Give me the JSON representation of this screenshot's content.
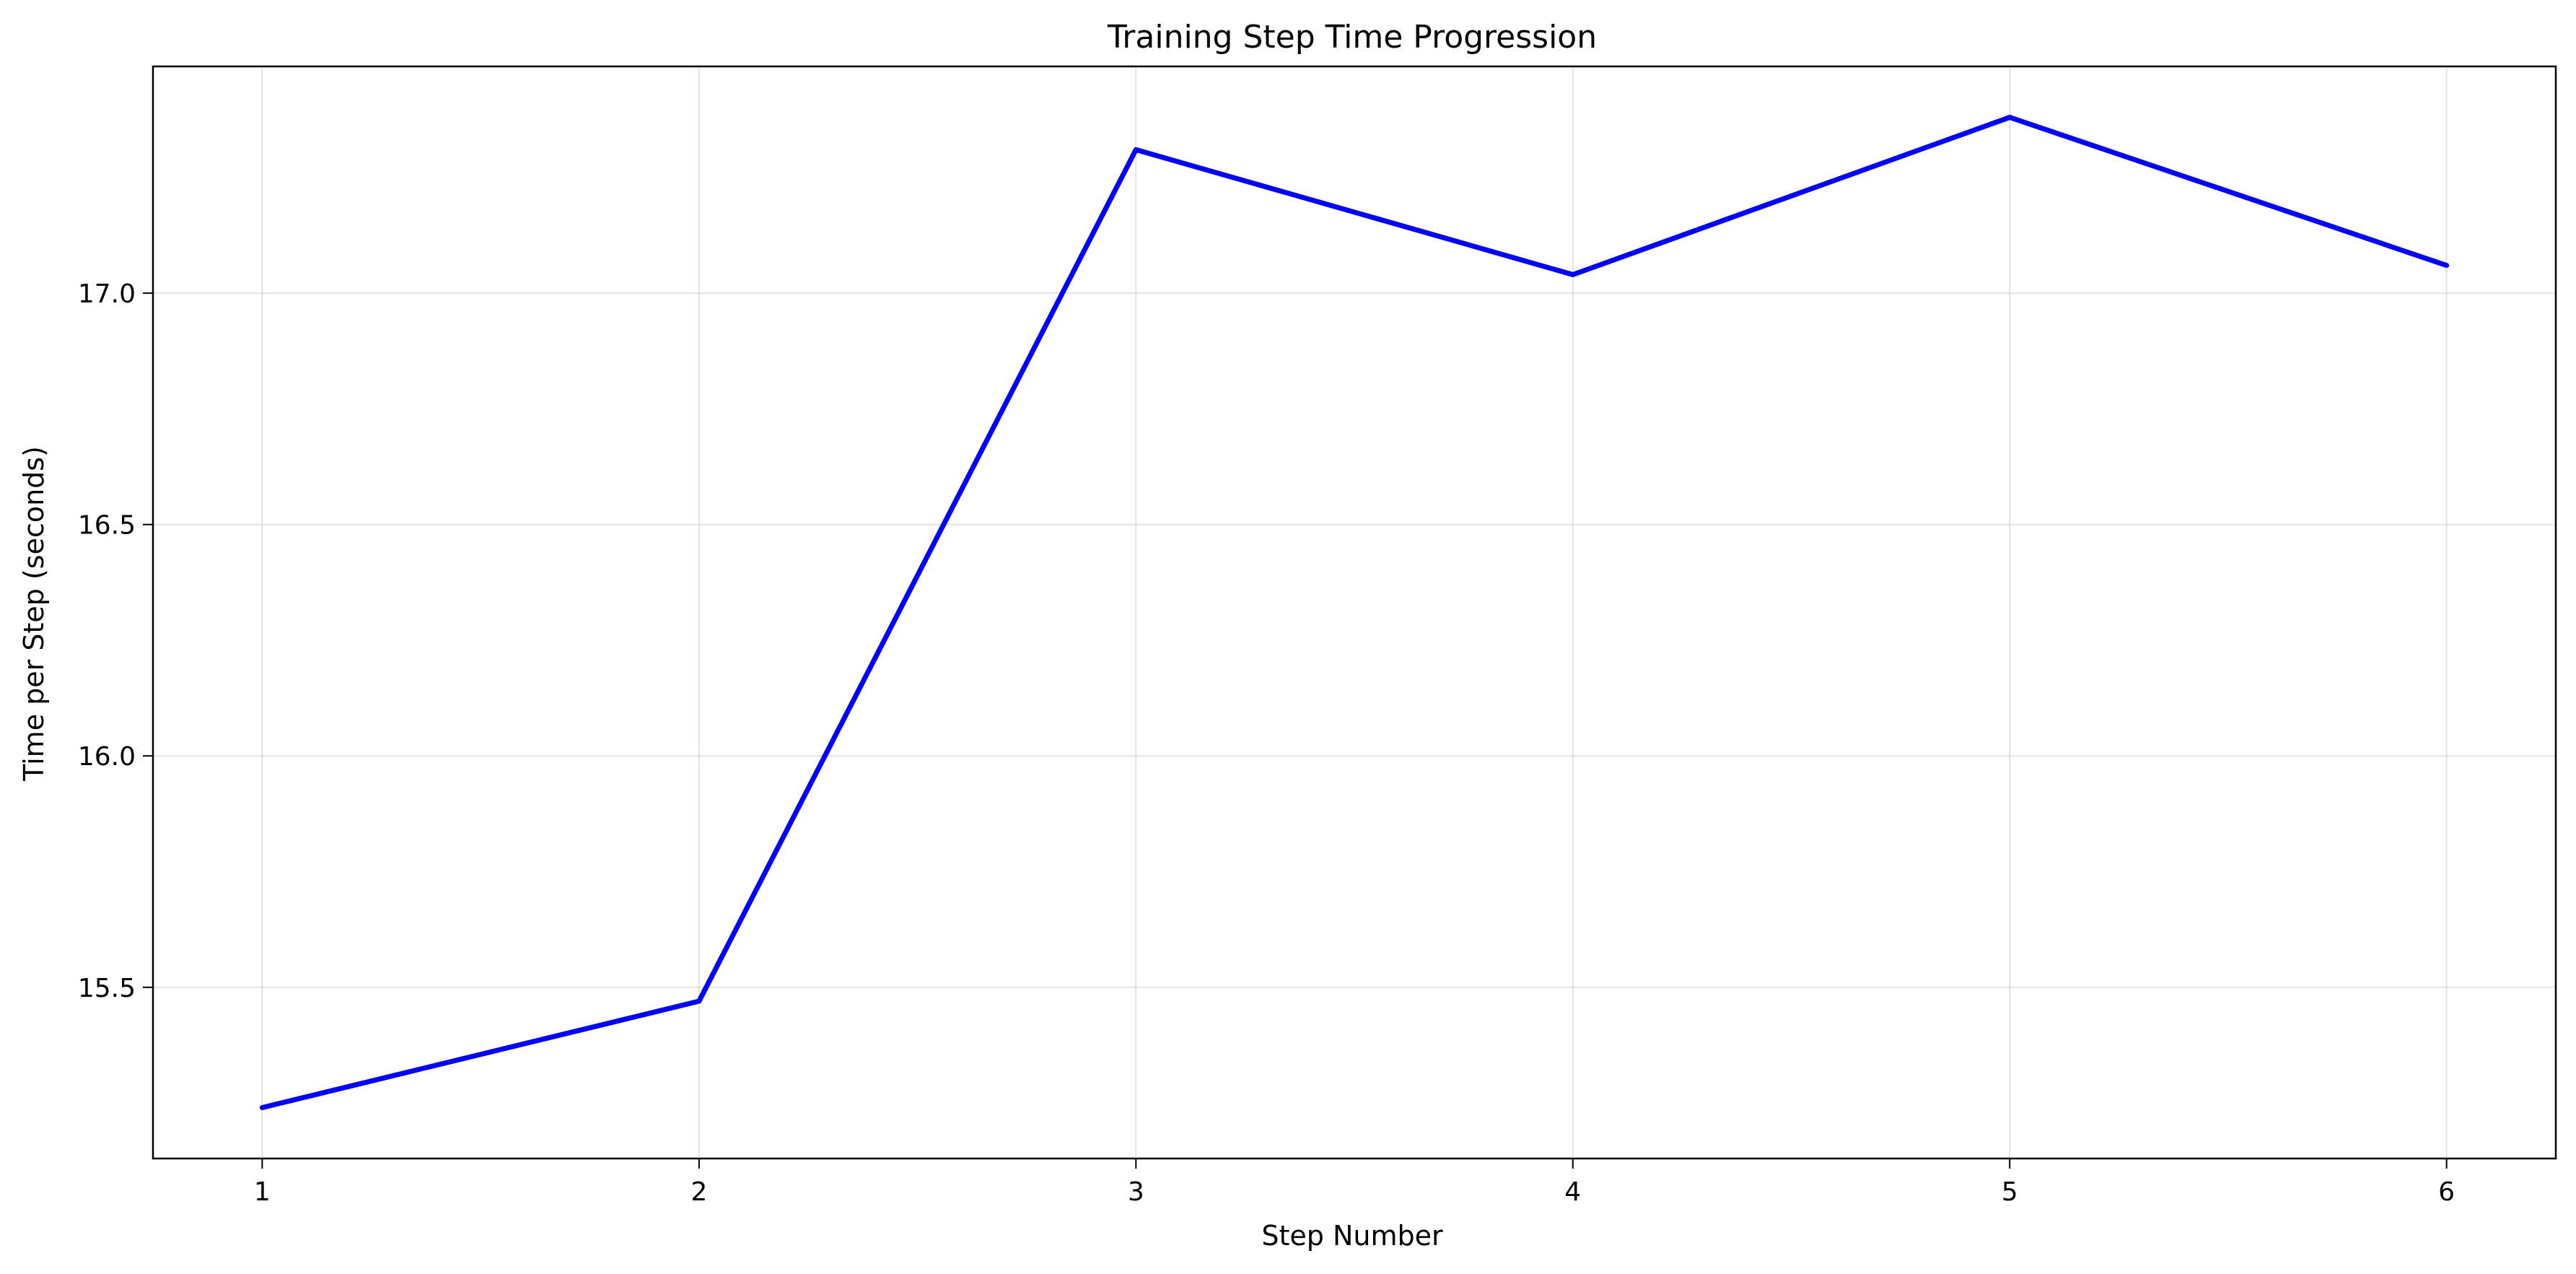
{
  "chart_data": {
    "type": "line",
    "title": "Training Step Time Progression",
    "xlabel": "Step Number",
    "ylabel": "Time per Step (seconds)",
    "x": [
      1,
      2,
      3,
      4,
      5,
      6
    ],
    "series": [
      {
        "values": [
          15.24,
          15.47,
          17.31,
          17.04,
          17.38,
          17.06
        ],
        "color": "#0000ff"
      }
    ],
    "xlim": [
      0.75,
      6.25
    ],
    "ylim": [
      15.13,
      17.49
    ],
    "xticks": [
      1,
      2,
      3,
      4,
      5,
      6
    ],
    "yticks": [
      15.5,
      16.0,
      16.5,
      17.0
    ],
    "xtick_labels": [
      "1",
      "2",
      "3",
      "4",
      "5",
      "6"
    ],
    "ytick_labels": [
      "15.5",
      "16.0",
      "16.5",
      "17.0"
    ],
    "grid": true,
    "legend": "none"
  }
}
